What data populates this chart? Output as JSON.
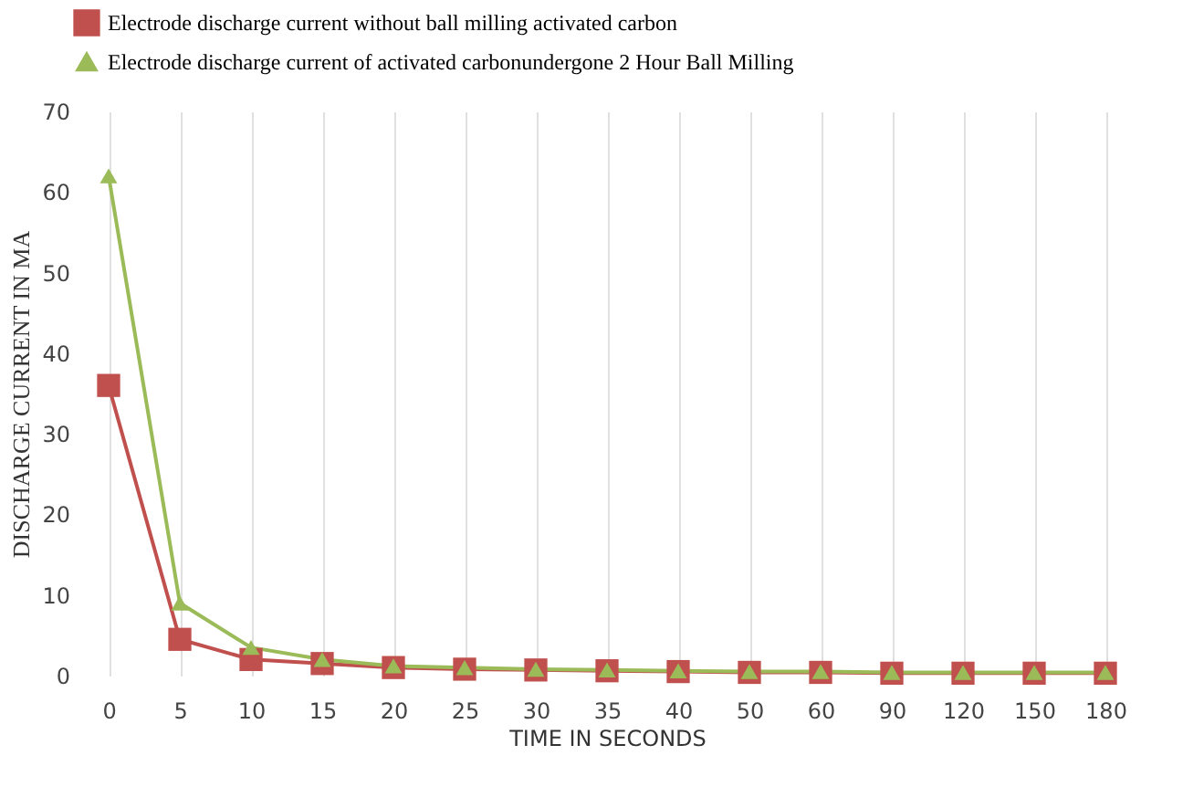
{
  "chart_data": {
    "type": "line",
    "xlabel": "TIME IN SECONDS",
    "ylabel": "DISCHARGE  CURRENT IN MA",
    "categories": [
      "0",
      "5",
      "10",
      "15",
      "20",
      "25",
      "30",
      "35",
      "40",
      "50",
      "60",
      "90",
      "120",
      "150",
      "180"
    ],
    "series": [
      {
        "name": "Electrode discharge current without ball milling activated carbon",
        "color": "#c0504d",
        "marker": "square",
        "values": [
          36,
          4.5,
          2,
          1.5,
          1,
          0.8,
          0.7,
          0.6,
          0.5,
          0.4,
          0.4,
          0.3,
          0.3,
          0.3,
          0.3
        ]
      },
      {
        "name": "Electrode discharge current of activated carbonundergone 2 Hour Ball Milling",
        "color": "#9bbb59",
        "marker": "triangle",
        "values": [
          62,
          9,
          3.5,
          2,
          1.2,
          1,
          0.8,
          0.7,
          0.6,
          0.5,
          0.5,
          0.4,
          0.4,
          0.4,
          0.4
        ]
      }
    ],
    "ylim": [
      0,
      70
    ],
    "yticks": [
      0,
      10,
      20,
      30,
      40,
      50,
      60,
      70
    ],
    "grid": "x",
    "legend": "top"
  }
}
